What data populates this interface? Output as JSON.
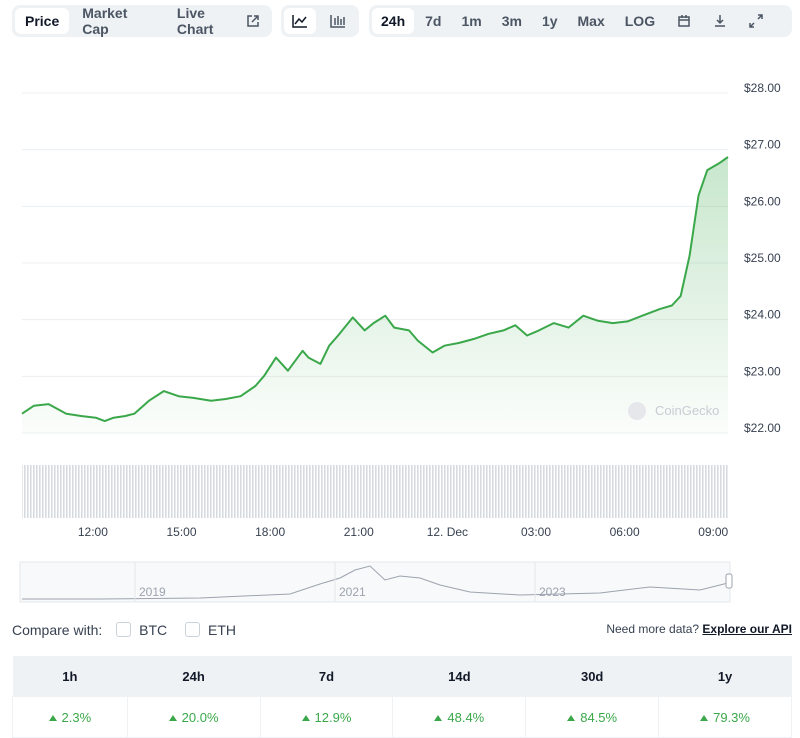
{
  "toolbar": {
    "tabs": [
      "Price",
      "Market Cap",
      "Live Chart"
    ],
    "ranges": [
      "24h",
      "7d",
      "1m",
      "3m",
      "1y",
      "Max",
      "LOG"
    ]
  },
  "chart_data": {
    "type": "line",
    "watermark": "CoinGecko",
    "color": "#3aa84a",
    "x": [
      9.6,
      10.0,
      10.5,
      11.1,
      11.6,
      12.1,
      12.4,
      12.7,
      13.1,
      13.4,
      13.9,
      14.4,
      14.9,
      15.4,
      16.0,
      16.5,
      17.0,
      17.5,
      17.8,
      18.2,
      18.6,
      19.1,
      19.3,
      19.7,
      20.0,
      20.3,
      20.8,
      21.2,
      21.5,
      21.9,
      22.2,
      22.7,
      23.0,
      23.5,
      23.9,
      24.4,
      24.9,
      25.4,
      25.9,
      26.3,
      26.7,
      27.1,
      27.6,
      28.1,
      28.6,
      29.1,
      29.6,
      30.1,
      30.6,
      31.2,
      31.6,
      31.9,
      32.2,
      32.5,
      32.8,
      33.2,
      33.5
    ],
    "values": [
      22.34,
      22.48,
      22.51,
      22.34,
      22.3,
      22.27,
      22.21,
      22.27,
      22.3,
      22.34,
      22.57,
      22.74,
      22.65,
      22.62,
      22.57,
      22.6,
      22.65,
      22.83,
      23.01,
      23.33,
      23.1,
      23.45,
      23.33,
      23.22,
      23.54,
      23.72,
      24.04,
      23.81,
      23.94,
      24.07,
      23.86,
      23.81,
      23.63,
      23.42,
      23.54,
      23.59,
      23.66,
      23.75,
      23.81,
      23.9,
      23.72,
      23.81,
      23.94,
      23.86,
      24.07,
      23.98,
      23.94,
      23.97,
      24.07,
      24.19,
      24.25,
      24.42,
      25.13,
      26.19,
      26.64,
      26.76,
      26.87
    ],
    "xlim": [
      9.6,
      33.5
    ],
    "xticks": [
      {
        "value": 12,
        "label": "12:00"
      },
      {
        "value": 15,
        "label": "15:00"
      },
      {
        "value": 18,
        "label": "18:00"
      },
      {
        "value": 21,
        "label": "21:00"
      },
      {
        "value": 24,
        "label": "12. Dec"
      },
      {
        "value": 27,
        "label": "03:00"
      },
      {
        "value": 30,
        "label": "06:00"
      },
      {
        "value": 33,
        "label": "09:00"
      }
    ],
    "ylim": [
      22,
      28
    ],
    "yticks": [
      {
        "value": 22,
        "label": "$22.00"
      },
      {
        "value": 23,
        "label": "$23.00"
      },
      {
        "value": 24,
        "label": "$24.00"
      },
      {
        "value": 25,
        "label": "$25.00"
      },
      {
        "value": 26,
        "label": "$26.00"
      },
      {
        "value": 27,
        "label": "$27.00"
      },
      {
        "value": 28,
        "label": "$28.00"
      }
    ],
    "grid": true
  },
  "navigator": {
    "labels": [
      "2019",
      "2021",
      "2023"
    ]
  },
  "compare": {
    "label": "Compare with:",
    "options": [
      "BTC",
      "ETH"
    ],
    "note": "Need more data?",
    "link": "Explore our API"
  },
  "table": {
    "headers": [
      "1h",
      "24h",
      "7d",
      "14d",
      "30d",
      "1y"
    ],
    "values": [
      "2.3%",
      "20.0%",
      "12.9%",
      "48.4%",
      "84.5%",
      "79.3%"
    ]
  }
}
